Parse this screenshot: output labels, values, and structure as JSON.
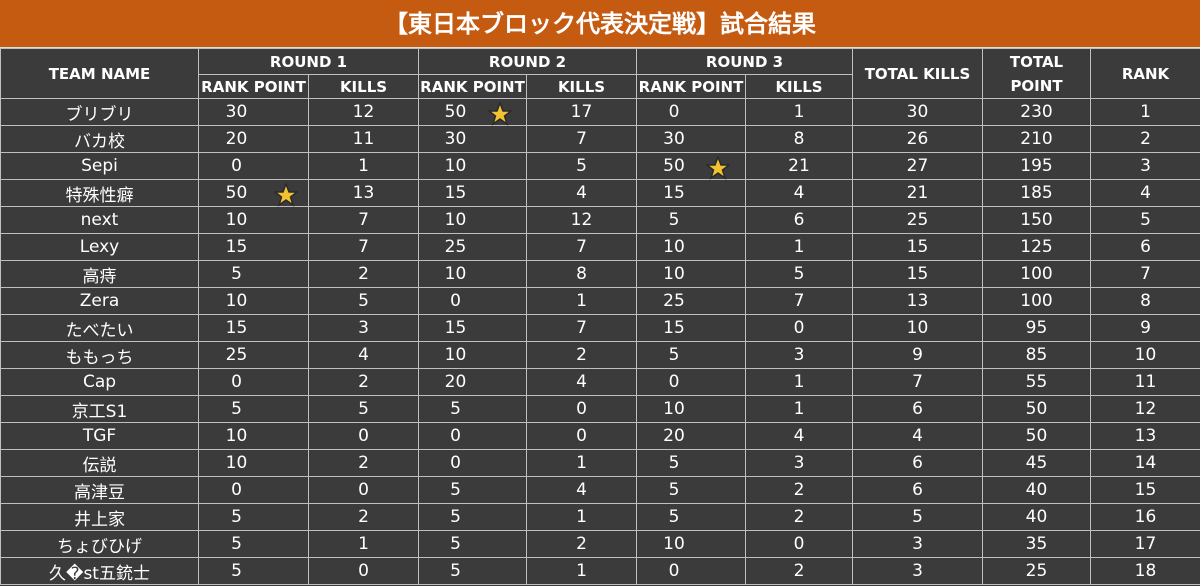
{
  "header": {
    "title": "【東日本ブロック代表決定戦】試合結果"
  },
  "table": {
    "team_name": "TEAM NAME",
    "rounds": [
      "ROUND 1",
      "ROUND 2",
      "ROUND 3"
    ],
    "rank_point": "RANK POINT",
    "kills": "KILLS",
    "total_kills": "TOTAL KILLS",
    "total_point": "TOTAL POINT",
    "rank": "RANK",
    "rows": [
      [
        "ブリブリ",
        30,
        12,
        50,
        17,
        0,
        1,
        30,
        230,
        1
      ],
      [
        "バカ校",
        20,
        11,
        30,
        7,
        30,
        8,
        26,
        210,
        2
      ],
      [
        "Sepi",
        0,
        1,
        10,
        5,
        50,
        21,
        27,
        195,
        3
      ],
      [
        "特殊性癖",
        50,
        13,
        15,
        4,
        15,
        4,
        21,
        185,
        4
      ],
      [
        "next",
        10,
        7,
        10,
        12,
        5,
        6,
        25,
        150,
        5
      ],
      [
        "Lexy",
        15,
        7,
        25,
        7,
        10,
        1,
        15,
        125,
        6
      ],
      [
        "高痔",
        5,
        2,
        10,
        8,
        10,
        5,
        15,
        100,
        7
      ],
      [
        "Zera",
        10,
        5,
        0,
        1,
        25,
        7,
        13,
        100,
        8
      ],
      [
        "たべたい",
        15,
        3,
        15,
        7,
        15,
        0,
        10,
        95,
        9
      ],
      [
        "ももっち",
        25,
        4,
        10,
        2,
        5,
        3,
        9,
        85,
        10
      ],
      [
        "Cap",
        0,
        2,
        20,
        4,
        0,
        1,
        7,
        55,
        11
      ],
      [
        "京工S1",
        5,
        5,
        5,
        0,
        10,
        1,
        6,
        50,
        12
      ],
      [
        "TGF",
        10,
        0,
        0,
        0,
        20,
        4,
        4,
        50,
        13
      ],
      [
        "伝説",
        10,
        2,
        0,
        1,
        5,
        3,
        6,
        45,
        14
      ],
      [
        "高津豆",
        0,
        0,
        5,
        4,
        5,
        2,
        6,
        40,
        15
      ],
      [
        "井上家",
        5,
        2,
        5,
        1,
        5,
        2,
        5,
        40,
        16
      ],
      [
        "ちょびひげ",
        5,
        1,
        5,
        2,
        10,
        0,
        3,
        35,
        17
      ],
      [
        "久�st五銃士",
        5,
        0,
        5,
        1,
        0,
        2,
        3,
        25,
        18
      ]
    ]
  }
}
